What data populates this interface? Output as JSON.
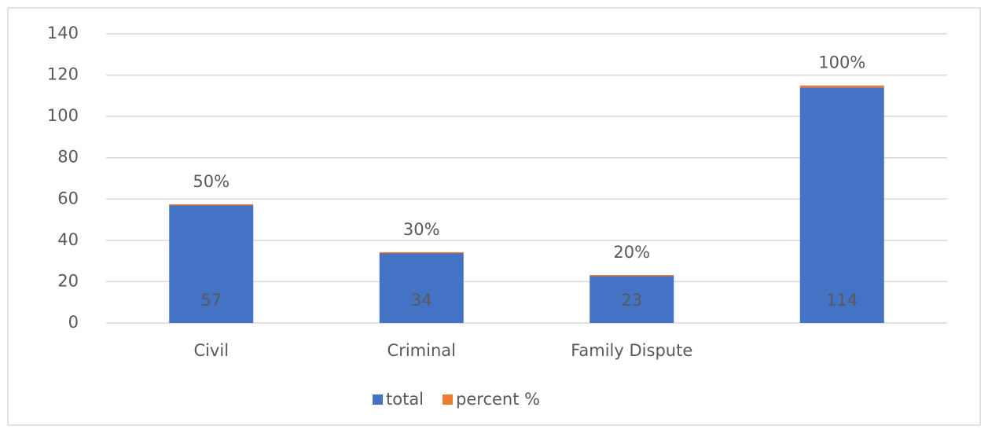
{
  "chart_data": {
    "type": "bar",
    "stacked": true,
    "categories": [
      "Civil",
      "Criminal",
      "Family Dispute",
      null
    ],
    "series": [
      {
        "name": "total",
        "color": "#4472c4",
        "values": [
          57,
          34,
          23,
          114
        ]
      },
      {
        "name": "percent %",
        "color": "#ed7d31",
        "values": [
          0.5,
          0.3,
          0.2,
          1
        ],
        "value_labels": [
          "50%",
          "30%",
          "20%",
          "100%"
        ]
      }
    ],
    "ylim": [
      0,
      140
    ],
    "yticks": [
      0,
      20,
      40,
      60,
      80,
      100,
      120,
      140
    ],
    "grid": true,
    "legend": "bottom"
  }
}
